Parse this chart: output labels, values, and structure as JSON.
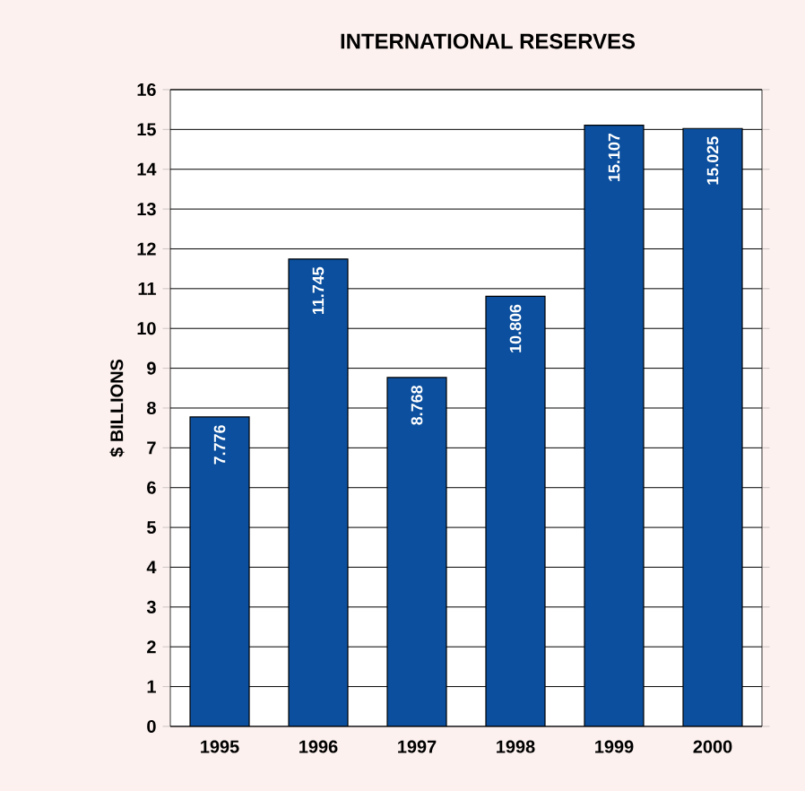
{
  "chart_data": {
    "type": "bar",
    "title": "INTERNATIONAL RESERVES",
    "ylabel": "$ BILLIONS",
    "categories": [
      "1995",
      "1996",
      "1997",
      "1998",
      "1999",
      "2000"
    ],
    "values": [
      7.776,
      11.745,
      8.768,
      10.806,
      15.107,
      15.025
    ],
    "color": "#0b4f9e",
    "ylim": [
      0,
      16
    ],
    "yticks": [
      0,
      1,
      2,
      3,
      4,
      5,
      6,
      7,
      8,
      9,
      10,
      11,
      12,
      13,
      14,
      15,
      16
    ],
    "grid": "y",
    "data_labels": true
  }
}
